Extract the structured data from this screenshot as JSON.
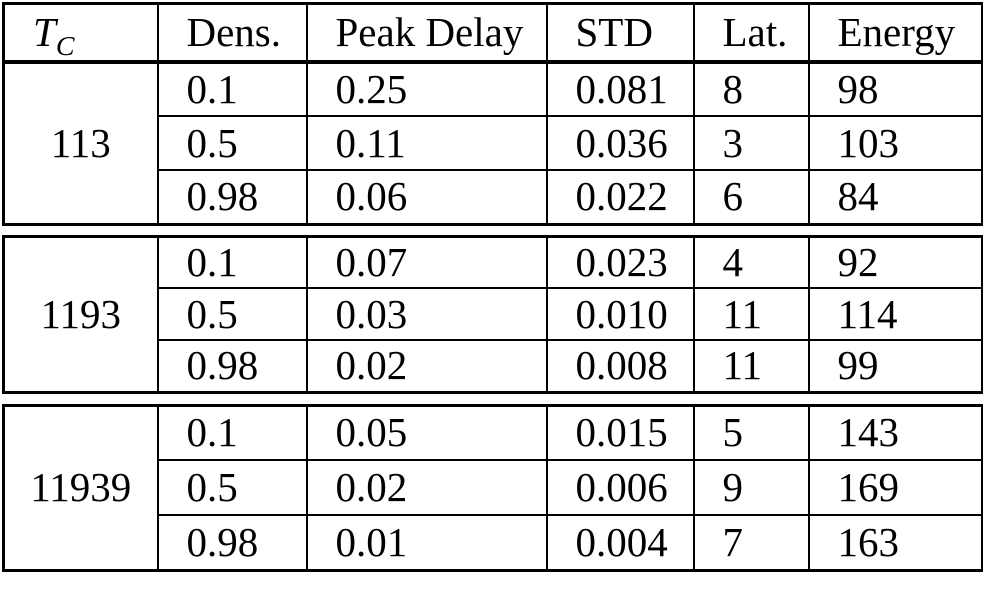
{
  "table": {
    "header": {
      "tc_base": "T",
      "tc_sub": "C",
      "columns": [
        "Dens.",
        "Peak Delay",
        "STD",
        "Lat.",
        "Energy"
      ]
    },
    "groups": [
      {
        "tc": "113",
        "rows": [
          [
            "0.1",
            "0.25",
            "0.081",
            "8",
            "98"
          ],
          [
            "0.5",
            "0.11",
            "0.036",
            "3",
            "103"
          ],
          [
            "0.98",
            "0.06",
            "0.022",
            "6",
            "84"
          ]
        ]
      },
      {
        "tc": "1193",
        "rows": [
          [
            "0.1",
            "0.07",
            "0.023",
            "4",
            "92"
          ],
          [
            "0.5",
            "0.03",
            "0.010",
            "11",
            "114"
          ],
          [
            "0.98",
            "0.02",
            "0.008",
            "11",
            "99"
          ]
        ]
      },
      {
        "tc": "11939",
        "rows": [
          [
            "0.1",
            "0.05",
            "0.015",
            "5",
            "143"
          ],
          [
            "0.5",
            "0.02",
            "0.006",
            "9",
            "169"
          ],
          [
            "0.98",
            "0.01",
            "0.004",
            "7",
            "163"
          ]
        ]
      }
    ],
    "colors": {
      "border": "#000000",
      "text": "#000000",
      "background": "#ffffff"
    }
  }
}
